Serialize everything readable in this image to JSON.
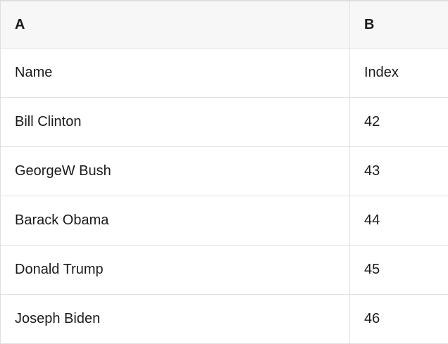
{
  "table": {
    "header": {
      "col_a": "A",
      "col_b": "B"
    },
    "rows": [
      {
        "a": "Name",
        "b": "Index"
      },
      {
        "a": "Bill Clinton",
        "b": "42"
      },
      {
        "a": "GeorgeW Bush",
        "b": "43"
      },
      {
        "a": "Barack Obama",
        "b": "44"
      },
      {
        "a": "Donald Trump",
        "b": "45"
      },
      {
        "a": "Joseph Biden",
        "b": "46"
      }
    ]
  },
  "colors": {
    "header_bg": "#f7f7f7",
    "border": "#e2e2e2",
    "text": "#1b1b1b",
    "background": "#ffffff"
  }
}
